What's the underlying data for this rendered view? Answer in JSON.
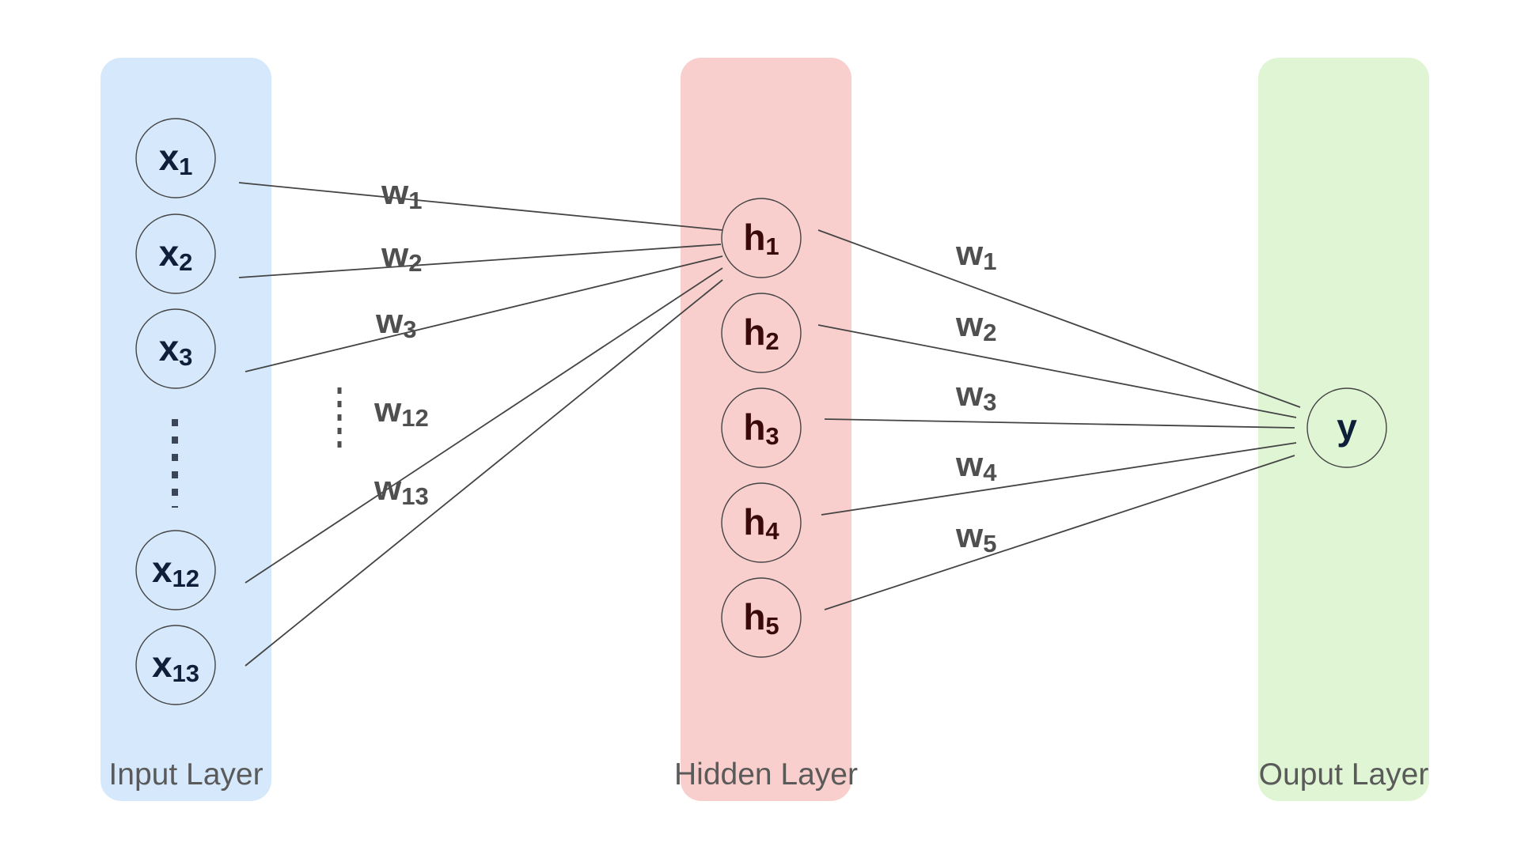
{
  "colors": {
    "input_panel": "#d6e9fc",
    "hidden_panel": "#f9cfcd",
    "output_panel": "#dff5d4",
    "node_text": "#0f1f3a",
    "hidden_node_text": "#3a0a0a",
    "edge": "#444444"
  },
  "layers": {
    "input": {
      "title": "Input Layer",
      "nodes": [
        {
          "base": "x",
          "sub": "1"
        },
        {
          "base": "x",
          "sub": "2"
        },
        {
          "base": "x",
          "sub": "3"
        },
        {
          "base": "x",
          "sub": "12"
        },
        {
          "base": "x",
          "sub": "13"
        }
      ],
      "ellipsis": "⋮"
    },
    "hidden": {
      "title": "Hidden Layer",
      "nodes": [
        {
          "base": "h",
          "sub": "1"
        },
        {
          "base": "h",
          "sub": "2"
        },
        {
          "base": "h",
          "sub": "3"
        },
        {
          "base": "h",
          "sub": "4"
        },
        {
          "base": "h",
          "sub": "5"
        }
      ]
    },
    "output": {
      "title": "Ouput Layer",
      "nodes": [
        {
          "base": "y",
          "sub": ""
        }
      ]
    }
  },
  "weights_input_hidden": [
    {
      "base": "w",
      "sub": "1"
    },
    {
      "base": "w",
      "sub": "2"
    },
    {
      "base": "w",
      "sub": "3"
    },
    {
      "base": "w",
      "sub": "12"
    },
    {
      "base": "w",
      "sub": "13"
    }
  ],
  "weights_hidden_output": [
    {
      "base": "w",
      "sub": "1"
    },
    {
      "base": "w",
      "sub": "2"
    },
    {
      "base": "w",
      "sub": "3"
    },
    {
      "base": "w",
      "sub": "4"
    },
    {
      "base": "w",
      "sub": "5"
    }
  ],
  "middle_ellipsis": "⋮"
}
